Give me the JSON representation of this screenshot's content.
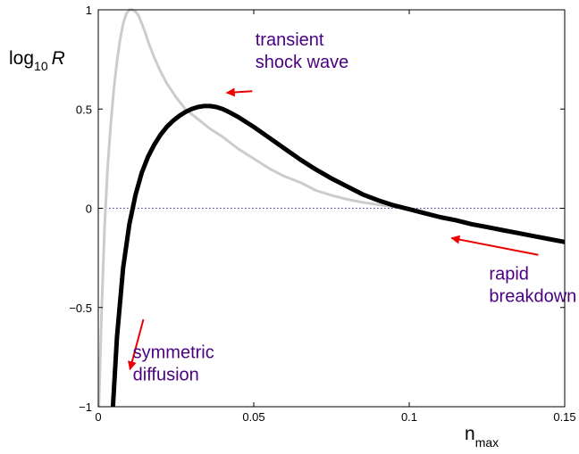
{
  "chart_data": {
    "type": "line",
    "title": "",
    "xlabel": {
      "base": "n",
      "subscript": "max"
    },
    "ylabel": {
      "prefix": "log",
      "subscript": "10",
      "suffix": "R"
    },
    "xlim": [
      0,
      0.15
    ],
    "ylim": [
      -1,
      1
    ],
    "xticks": [
      {
        "value": 0,
        "label": "0"
      },
      {
        "value": 0.05,
        "label": "0.05"
      },
      {
        "value": 0.1,
        "label": "0.1"
      },
      {
        "value": 0.15,
        "label": "0.15"
      }
    ],
    "yticks": [
      {
        "value": -1,
        "label": "−1"
      },
      {
        "value": -0.5,
        "label": "−0.5"
      },
      {
        "value": 0,
        "label": "0"
      },
      {
        "value": 0.5,
        "label": "0.5"
      },
      {
        "value": 1,
        "label": "1"
      }
    ],
    "grid": false,
    "reference_line": {
      "y": 0,
      "style": "dotted",
      "color": "#3333cc"
    },
    "series": [
      {
        "color": "#cccccc",
        "linewidth": 3,
        "x": [
          0.0002,
          0.001,
          0.002,
          0.003,
          0.004,
          0.005,
          0.006,
          0.007,
          0.008,
          0.009,
          0.01,
          0.011,
          0.012,
          0.013,
          0.014,
          0.015,
          0.016,
          0.018,
          0.02,
          0.022,
          0.025,
          0.028,
          0.032,
          0.036,
          0.04,
          0.045,
          0.05,
          0.055,
          0.06,
          0.065,
          0.07,
          0.075,
          0.08,
          0.085,
          0.09,
          0.095,
          0.1
        ],
        "y": [
          -1.0,
          -0.55,
          -0.1,
          0.2,
          0.42,
          0.6,
          0.74,
          0.85,
          0.93,
          0.98,
          1.0,
          1.0,
          0.99,
          0.97,
          0.93,
          0.89,
          0.84,
          0.76,
          0.69,
          0.63,
          0.56,
          0.5,
          0.45,
          0.4,
          0.36,
          0.3,
          0.25,
          0.2,
          0.16,
          0.13,
          0.09,
          0.065,
          0.045,
          0.03,
          0.018,
          0.008,
          0.0
        ]
      },
      {
        "color": "#000000",
        "linewidth": 5,
        "x": [
          0.0047,
          0.006,
          0.008,
          0.01,
          0.012,
          0.014,
          0.016,
          0.018,
          0.02,
          0.022,
          0.024,
          0.026,
          0.028,
          0.03,
          0.032,
          0.034,
          0.036,
          0.038,
          0.04,
          0.042,
          0.045,
          0.05,
          0.055,
          0.06,
          0.065,
          0.07,
          0.075,
          0.08,
          0.085,
          0.09,
          0.095,
          0.1,
          0.105,
          0.11,
          0.115,
          0.12,
          0.125,
          0.13,
          0.135,
          0.14,
          0.145,
          0.15
        ],
        "y": [
          -1.0,
          -0.65,
          -0.3,
          -0.08,
          0.07,
          0.18,
          0.26,
          0.32,
          0.37,
          0.41,
          0.44,
          0.465,
          0.485,
          0.5,
          0.51,
          0.515,
          0.515,
          0.51,
          0.5,
          0.485,
          0.46,
          0.41,
          0.355,
          0.3,
          0.245,
          0.195,
          0.15,
          0.11,
          0.07,
          0.04,
          0.015,
          -0.005,
          -0.025,
          -0.045,
          -0.06,
          -0.08,
          -0.095,
          -0.11,
          -0.125,
          -0.14,
          -0.155,
          -0.17
        ]
      }
    ],
    "annotations": [
      {
        "lines": [
          "transient",
          "shock wave"
        ],
        "x": 0.0505,
        "y": 0.82,
        "color": "#4b0082",
        "anchor": "start"
      },
      {
        "lines": [
          "rapid",
          "breakdown"
        ],
        "x": 0.1257,
        "y": -0.36,
        "color": "#4b0082",
        "anchor": "start"
      },
      {
        "lines": [
          "symmetric",
          "diffusion"
        ],
        "x": 0.0111,
        "y": -0.755,
        "color": "#4b0082",
        "anchor": "start"
      }
    ],
    "arrows": [
      {
        "from": [
          0.0495,
          0.59
        ],
        "to": [
          0.0413,
          0.582
        ],
        "color": "#ee0000"
      },
      {
        "from": [
          0.1415,
          -0.235
        ],
        "to": [
          0.1136,
          -0.15
        ],
        "color": "#ee0000"
      },
      {
        "from": [
          0.0145,
          -0.56
        ],
        "to": [
          0.0102,
          -0.812
        ],
        "color": "#ee0000"
      }
    ]
  }
}
